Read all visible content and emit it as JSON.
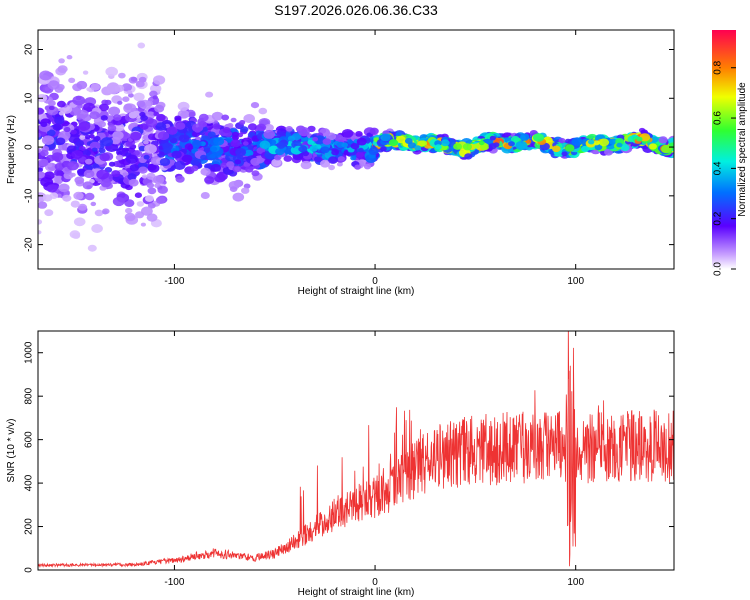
{
  "title": "S197.2026.026.06.36.C33",
  "chart_data": [
    {
      "type": "heatmap",
      "xlabel": "Height of straight line (km)",
      "ylabel": "Frequency (Hz)",
      "xlim": [
        -168,
        149
      ],
      "ylim": [
        -25,
        24
      ],
      "xticks": [
        -100,
        0,
        100
      ],
      "yticks": [
        -20,
        -10,
        0,
        10,
        20
      ],
      "colorbar": {
        "label": "Normalized spectral amplitude",
        "range": [
          0,
          0.95
        ],
        "ticks": [
          0.0,
          0.2,
          0.4,
          0.6,
          0.8
        ],
        "tick_labels": [
          "0.0",
          "0.2",
          "0.4",
          "0.6",
          "0.8"
        ]
      },
      "ridge": {
        "description_values_km": [
          -100,
          -50,
          0,
          50,
          100,
          149
        ],
        "center_frequency_hz": [
          0,
          0,
          0,
          0,
          0,
          0
        ],
        "peak_amplitude": [
          0.2,
          0.35,
          0.5,
          0.9,
          0.9,
          0.9
        ]
      }
    },
    {
      "type": "line",
      "color": "#ee3333",
      "xlabel": "Height of straight line (km)",
      "ylabel": "SNR (10 * v/v)",
      "xlim": [
        -168,
        149
      ],
      "ylim": [
        0,
        1100
      ],
      "xticks": [
        -100,
        0,
        100
      ],
      "yticks": [
        0,
        200,
        400,
        600,
        800,
        1000
      ],
      "trend": {
        "x": [
          -168,
          -120,
          -100,
          -80,
          -60,
          -50,
          -40,
          -30,
          -20,
          -10,
          0,
          10,
          20,
          30,
          50,
          80,
          100,
          149
        ],
        "y": [
          22,
          25,
          45,
          80,
          55,
          75,
          130,
          190,
          260,
          300,
          340,
          390,
          460,
          520,
          550,
          570,
          560,
          570
        ]
      }
    }
  ]
}
